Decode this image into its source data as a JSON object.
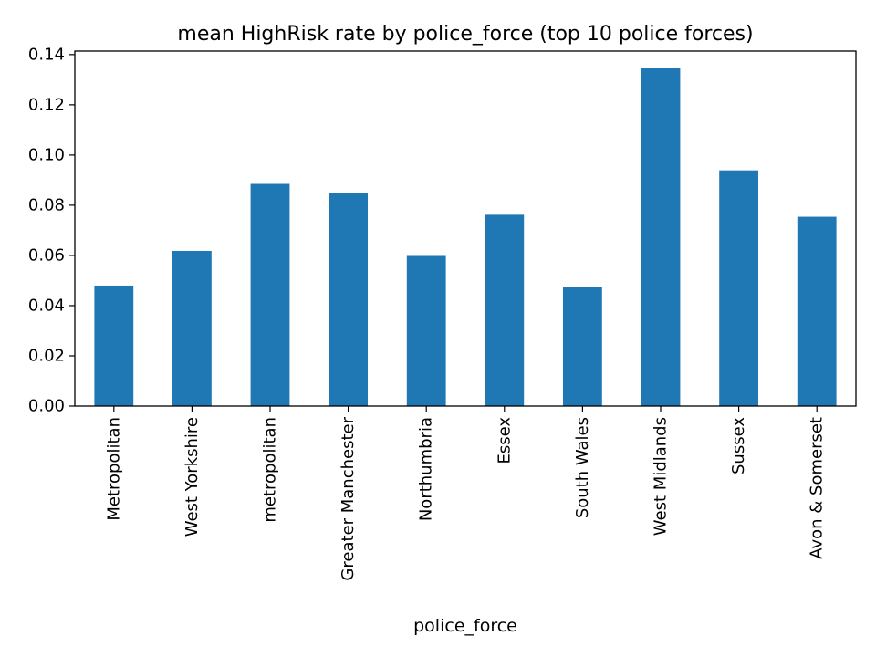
{
  "chart_data": {
    "type": "bar",
    "title": "mean HighRisk rate by police_force (top 10 police forces)",
    "xlabel": "police_force",
    "ylabel": "",
    "categories": [
      "Metropolitan",
      "West Yorkshire",
      "metropolitan",
      "Greater Manchester",
      "Northumbria",
      "Essex",
      "South Wales",
      "West Midlands",
      "Sussex",
      "Avon & Somerset"
    ],
    "values": [
      0.048,
      0.0618,
      0.0885,
      0.085,
      0.0598,
      0.0762,
      0.0473,
      0.1346,
      0.0939,
      0.0754
    ],
    "ylim": [
      0,
      0.1414
    ],
    "yticks": [
      "0.00",
      "0.02",
      "0.04",
      "0.06",
      "0.08",
      "0.10",
      "0.12",
      "0.14"
    ],
    "grid": false,
    "legend": "none",
    "bar_color": "#1f77b4"
  }
}
